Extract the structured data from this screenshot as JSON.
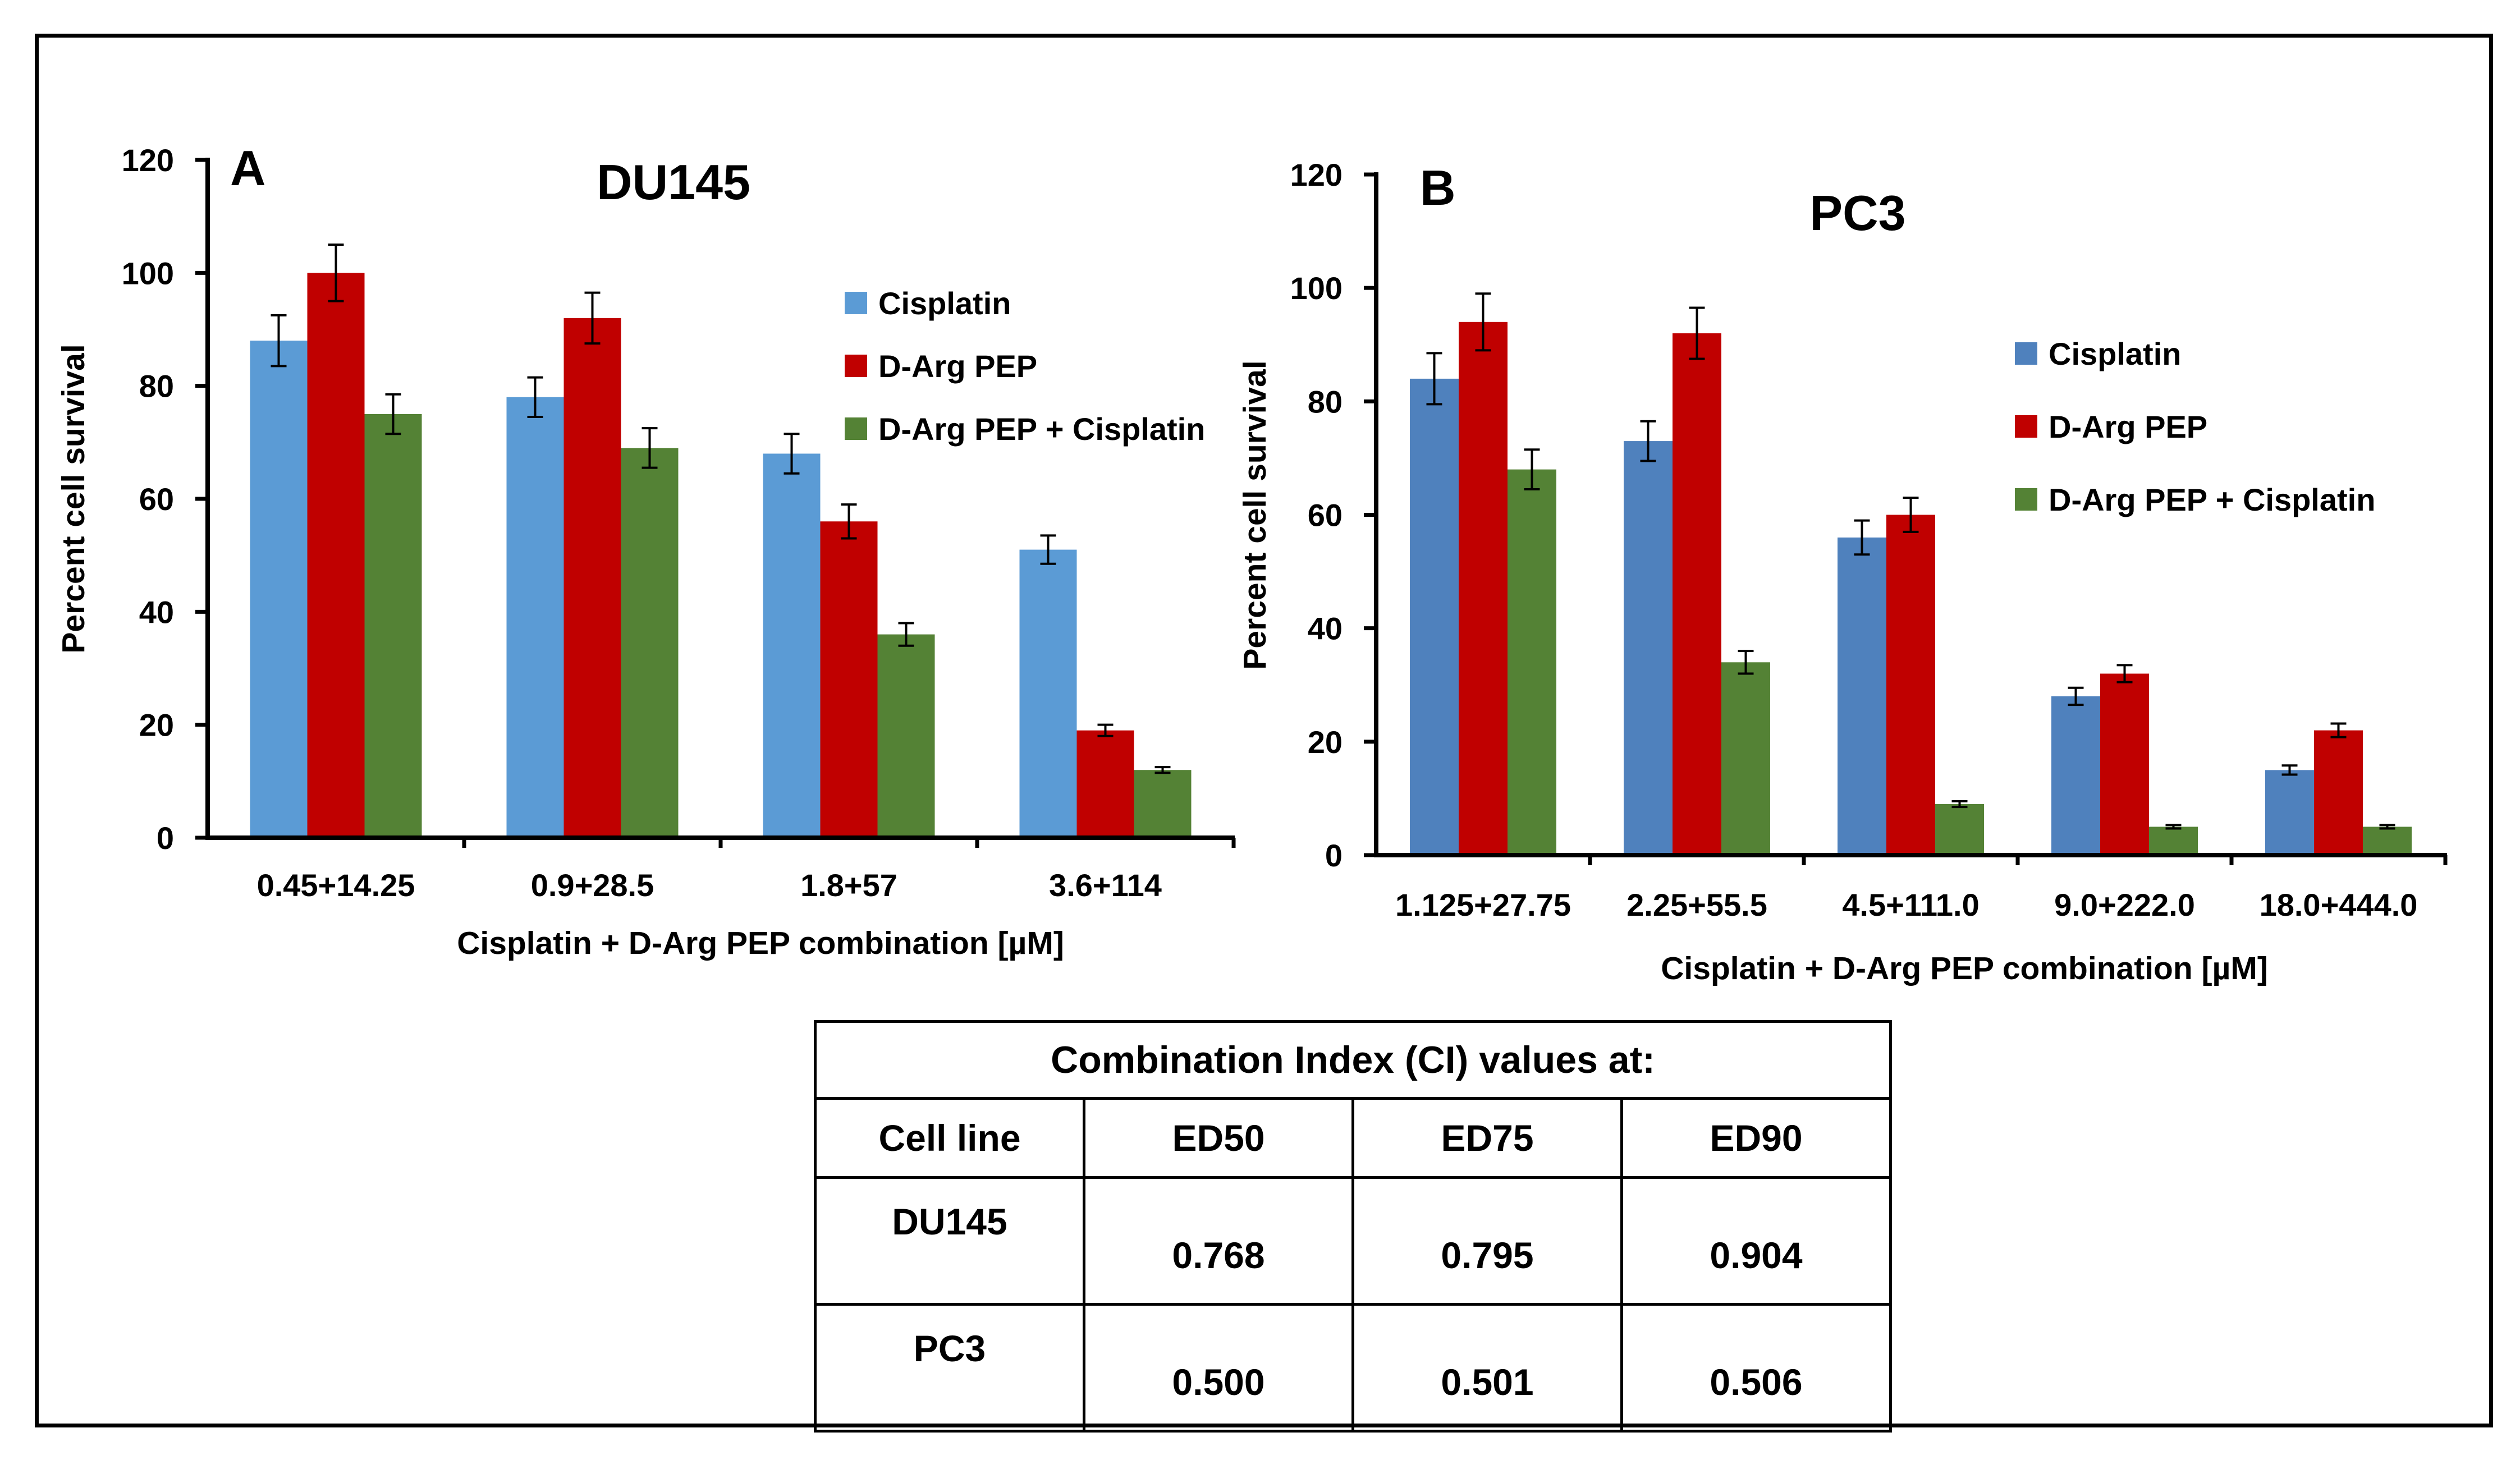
{
  "colors": {
    "cisplatin_a": "#5b9bd5",
    "cisplatin_b": "#4f81bd",
    "darg": "#c00000",
    "combo": "#548235",
    "axis": "#000000"
  },
  "chart_data": [
    {
      "type": "bar",
      "panel": "A",
      "title": "DU145",
      "xlabel": "Cisplatin + D-Arg PEP combination [µM]",
      "ylabel": "Percent cell survival",
      "ylim": [
        0,
        120
      ],
      "yticks": [
        0,
        20,
        40,
        60,
        80,
        100,
        120
      ],
      "categories": [
        "0.45+14.25",
        "0.9+28.5",
        "1.8+57",
        "3.6+114"
      ],
      "legend_position": "right",
      "series": [
        {
          "name": "Cisplatin",
          "values": [
            88,
            78,
            68,
            51
          ],
          "errors": [
            4.5,
            3.5,
            3.5,
            2.5
          ]
        },
        {
          "name": "D-Arg PEP",
          "values": [
            100,
            92,
            56,
            19
          ],
          "errors": [
            5,
            4.5,
            3,
            1
          ]
        },
        {
          "name": "D-Arg PEP + Cisplatin",
          "values": [
            75,
            69,
            36,
            12
          ],
          "errors": [
            3.5,
            3.5,
            2,
            0.5
          ]
        }
      ]
    },
    {
      "type": "bar",
      "panel": "B",
      "title": "PC3",
      "xlabel": "Cisplatin + D-Arg PEP combination [µM]",
      "ylabel": "Percent cell survival",
      "ylim": [
        0,
        120
      ],
      "yticks": [
        0,
        20,
        40,
        60,
        80,
        100,
        120
      ],
      "categories": [
        "1.125+27.75",
        "2.25+55.5",
        "4.5+111.0",
        "9.0+222.0",
        "18.0+444.0"
      ],
      "legend_position": "right",
      "series": [
        {
          "name": "Cisplatin",
          "values": [
            84,
            73,
            56,
            28,
            15
          ],
          "errors": [
            4.5,
            3.5,
            3,
            1.5,
            0.8
          ]
        },
        {
          "name": "D-Arg PEP",
          "values": [
            94,
            92,
            60,
            32,
            22
          ],
          "errors": [
            5,
            4.5,
            3,
            1.5,
            1.2
          ]
        },
        {
          "name": "D-Arg PEP + Cisplatin",
          "values": [
            68,
            34,
            9,
            5,
            5
          ],
          "errors": [
            3.5,
            2,
            0.5,
            0.3,
            0.3
          ]
        }
      ]
    }
  ],
  "table": {
    "caption": "Combination Index (CI) values at:",
    "headers": [
      "Cell line",
      "ED50",
      "ED75",
      "ED90"
    ],
    "rows": [
      {
        "line": "DU145",
        "ed50": "0.768",
        "ed75": "0.795",
        "ed90": "0.904"
      },
      {
        "line": "PC3",
        "ed50": "0.500",
        "ed75": "0.501",
        "ed90": "0.506"
      }
    ]
  }
}
